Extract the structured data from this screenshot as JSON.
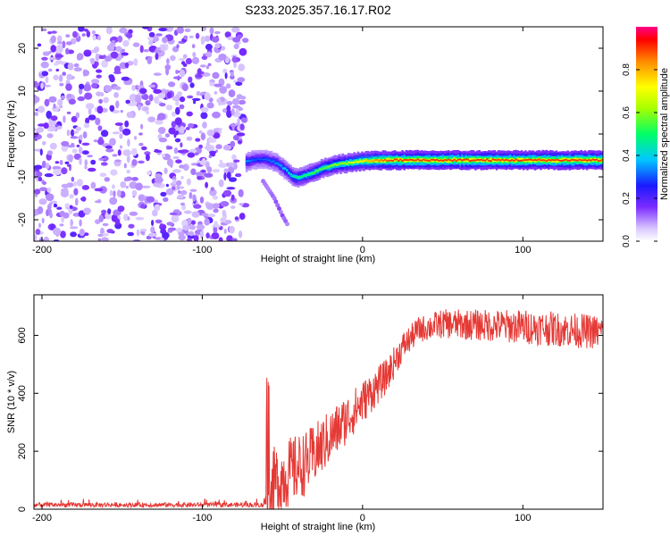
{
  "title": "S233.2025.357.16.17.R02",
  "chart_data": [
    {
      "type": "heatmap",
      "id": "spectrogram",
      "xlabel": "Height of straight line (km)",
      "ylabel": "Frequency (Hz)",
      "xlim": [
        -205,
        150
      ],
      "ylim": [
        -25,
        25
      ],
      "xticks": [
        -200,
        -100,
        0,
        100
      ],
      "yticks": [
        -20,
        -10,
        0,
        10,
        20
      ],
      "colorbar": {
        "label": "Normalized spectral amplitude",
        "range": [
          0,
          1
        ],
        "ticks": [
          "0.0",
          "0.2",
          "0.4",
          "0.6",
          "0.8"
        ],
        "tick_values": [
          0.0,
          0.2,
          0.4,
          0.6,
          0.8
        ]
      },
      "noise_region_x": [
        -205,
        -73
      ],
      "signal_trace": {
        "x": [
          -73,
          -68,
          -63,
          -58,
          -53,
          -48,
          -44,
          -40,
          -35,
          -30,
          -25,
          -20,
          -15,
          -10,
          -5,
          0,
          5,
          10,
          20,
          30,
          40,
          60,
          80,
          100,
          120,
          150
        ],
        "freq": [
          -6.5,
          -6.0,
          -5.8,
          -6.2,
          -7.0,
          -8.5,
          -10.0,
          -10.2,
          -9.5,
          -8.8,
          -8.0,
          -7.5,
          -7.0,
          -6.8,
          -6.5,
          -6.3,
          -6.2,
          -6.2,
          -6.1,
          -6.1,
          -6.1,
          -6.1,
          -6.1,
          -6.1,
          -6.1,
          -6.1
        ],
        "amplitude": [
          0.35,
          0.3,
          0.3,
          0.32,
          0.35,
          0.4,
          0.45,
          0.5,
          0.5,
          0.55,
          0.55,
          0.6,
          0.6,
          0.65,
          0.7,
          0.75,
          0.8,
          0.85,
          0.9,
          0.9,
          0.9,
          0.9,
          0.9,
          0.9,
          0.9,
          0.9
        ]
      },
      "secondary_trace": {
        "x": [
          -62,
          -55,
          -50,
          -47
        ],
        "freq": [
          -11,
          -15,
          -19,
          -21
        ]
      }
    },
    {
      "type": "line",
      "id": "snr",
      "xlabel": "Height of straight line (km)",
      "ylabel": "SNR (10 * v/v)",
      "xlim": [
        -205,
        150
      ],
      "ylim": [
        0,
        740
      ],
      "xticks": [
        -200,
        -100,
        0,
        100
      ],
      "yticks": [
        0,
        200,
        400,
        600
      ],
      "color": "#e53935",
      "envelope": {
        "x": [
          -205,
          -62,
          -55,
          -45,
          -35,
          -25,
          -15,
          -5,
          5,
          15,
          25,
          35,
          50,
          75,
          100,
          125,
          150
        ],
        "mean": [
          15,
          15,
          90,
          130,
          160,
          220,
          280,
          340,
          400,
          460,
          560,
          620,
          640,
          635,
          630,
          620,
          610
        ],
        "spread": [
          8,
          8,
          130,
          120,
          110,
          100,
          90,
          80,
          70,
          60,
          50,
          45,
          50,
          55,
          60,
          60,
          60
        ]
      }
    }
  ]
}
